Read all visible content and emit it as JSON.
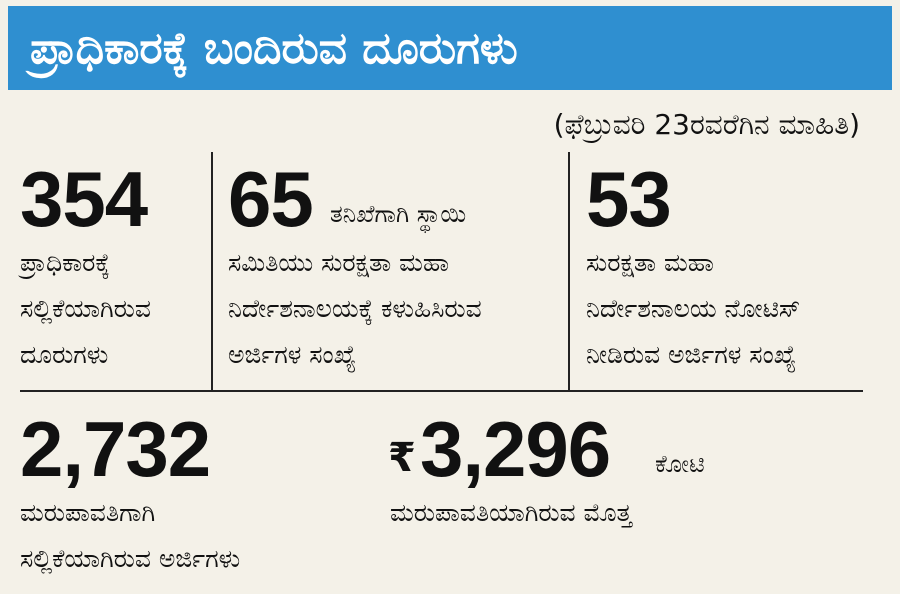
{
  "header": {
    "title": "ಪ್ರಾಧಿಕಾರಕ್ಕೆ ಬಂದಿರುವ ದೂರುಗಳು",
    "bg_color": "#2f8fd0"
  },
  "date_note": "(ಫೆಬ್ರುವರಿ 23ರವರೆಗಿನ ಮಾಹಿತಿ)",
  "stats": [
    {
      "value": "354",
      "label": "ಪ್ರಾಧಿಕಾರಕ್ಕೆ\nಸಲ್ಲಿಕೆಯಾಗಿರುವ\nದೂರುಗಳು"
    },
    {
      "value": "65",
      "suffix": "ತನಿಖೆಗಾಗಿ ಸ್ಥಾಯಿ",
      "label": "ಸಮಿತಿಯು ಸುರಕ್ಷತಾ ಮಹಾ\nನಿರ್ದೇಶನಾಲಯಕ್ಕೆ ಕಳುಹಿಸಿರುವ\nಅರ್ಜಿಗಳ ಸಂಖ್ಯೆ"
    },
    {
      "value": "53",
      "label": "ಸುರಕ್ಷತಾ ಮಹಾ\nನಿರ್ದೇಶನಾಲಯ ನೋಟಿಸ್\nನೀಡಿರುವ ಅರ್ಜಿಗಳ ಸಂಖ್ಯೆ"
    },
    {
      "value": "2,732",
      "label": "ಮರುಪಾವತಿಗಾಗಿ\nಸಲ್ಲಿಕೆಯಾಗಿರುವ ಅರ್ಜಿಗಳು"
    },
    {
      "currency": "₹",
      "value": "3,296",
      "suffix": "ಕೋಟಿ",
      "label": "ಮರುಪಾವತಿಯಾಗಿರುವ ಮೊತ್ತ"
    }
  ]
}
